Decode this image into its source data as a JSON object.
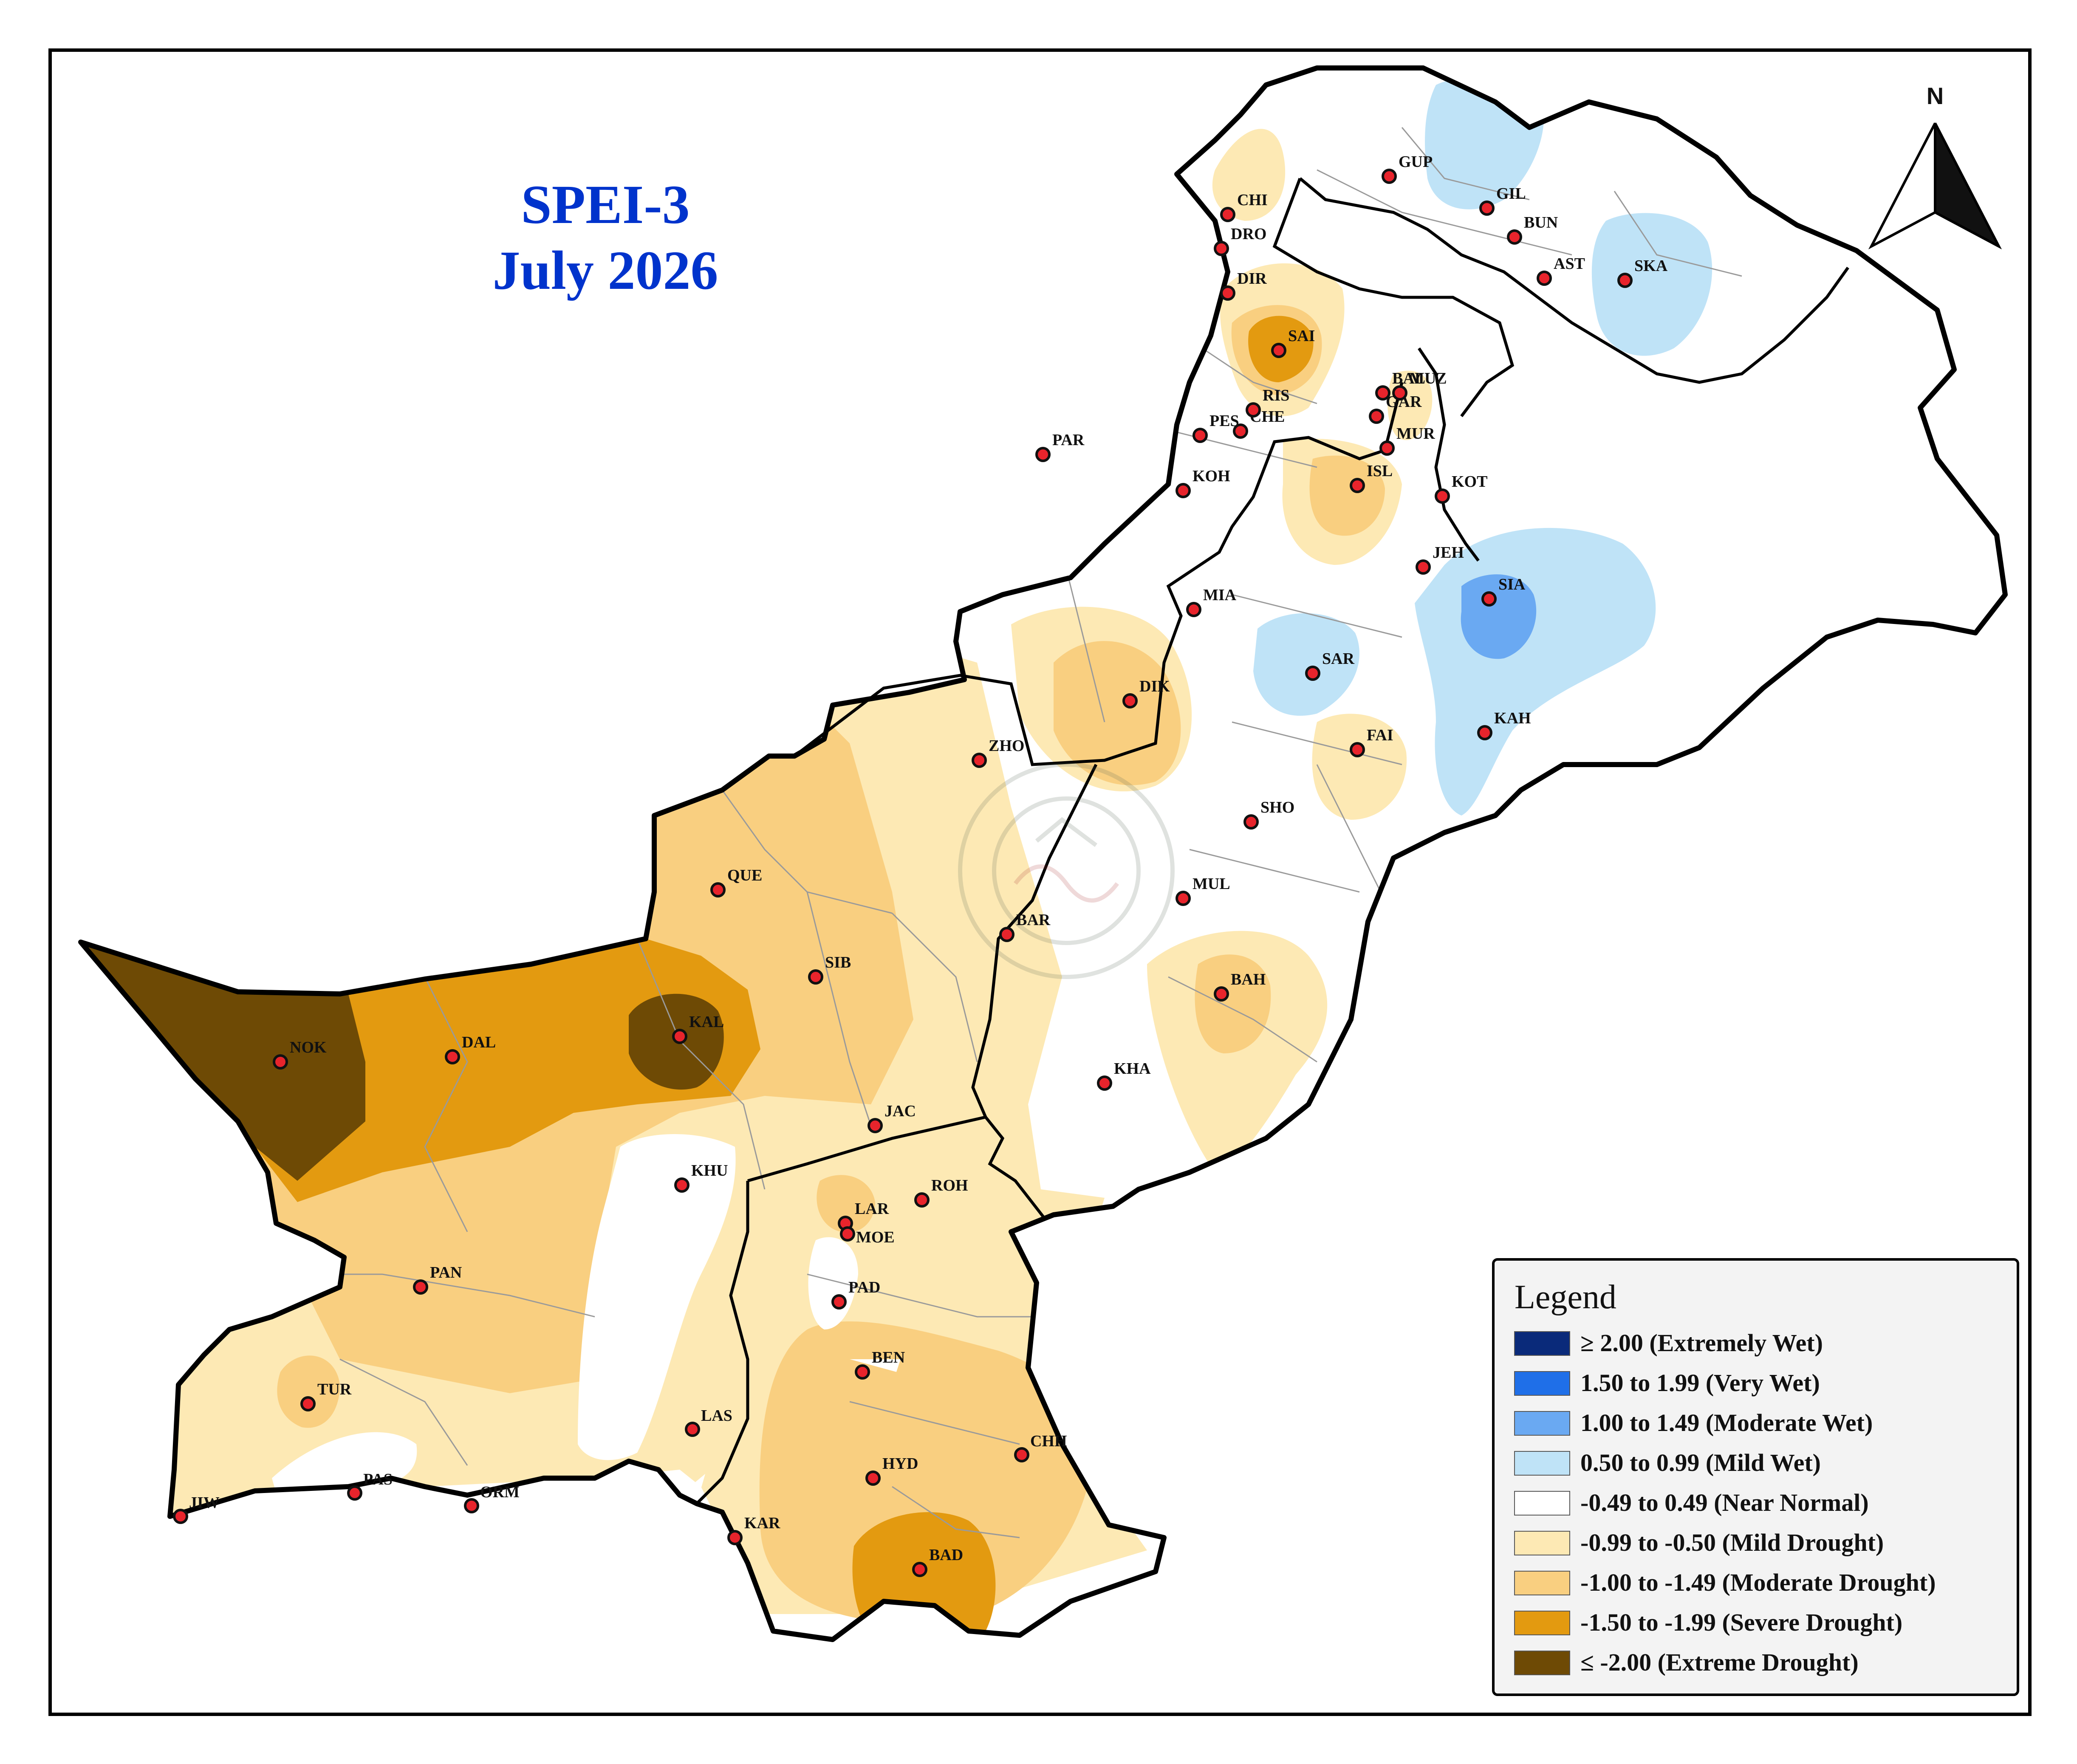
{
  "title": {
    "line1": "SPEI-3",
    "line2": "July 2026"
  },
  "north_label": "N",
  "legend": {
    "title": "Legend",
    "items": [
      {
        "label": "≥ 2.00 (Extremely Wet)",
        "color": "#0a2a7a"
      },
      {
        "label": "1.50 to 1.99 (Very Wet)",
        "color": "#1f6fe8"
      },
      {
        "label": "1.00 to 1.49 (Moderate Wet)",
        "color": "#6aa9f2"
      },
      {
        "label": "0.50 to 0.99 (Mild Wet)",
        "color": "#bfe3f7"
      },
      {
        "label": "-0.49 to 0.49 (Near Normal)",
        "color": "#ffffff"
      },
      {
        "label": "-0.99 to -0.50 (Mild Drought)",
        "color": "#fde9b4"
      },
      {
        "label": "-1.00 to -1.49 (Moderate Drought)",
        "color": "#f9cf80"
      },
      {
        "label": "-1.50 to -1.99 (Severe Drought)",
        "color": "#e39a10"
      },
      {
        "label": "≤ -2.00 (Extreme Drought)",
        "color": "#6e4a05"
      }
    ]
  },
  "stations": [
    "NOK",
    "DAL",
    "KAL",
    "QUE",
    "SIB",
    "ZHO",
    "DIK",
    "BAR",
    "JAC",
    "KHU",
    "LAR",
    "MOE",
    "PAD",
    "ROH",
    "BEN",
    "LAS",
    "HYD",
    "CHH",
    "KAR",
    "BAD",
    "PAN",
    "TUR",
    "JIW",
    "PAS",
    "ORM",
    "MIA",
    "SAR",
    "FAI",
    "SHO",
    "MUL",
    "BAH",
    "KHA",
    "SIA",
    "KAH",
    "JEH",
    "KOT",
    "ISL",
    "MUR",
    "GAR",
    "KOH",
    "PES",
    "CHE",
    "RIS",
    "SAI",
    "DIR",
    "DRO",
    "CHI",
    "GUP",
    "GIL",
    "BUN",
    "AST",
    "SKA",
    "PAR",
    "BAL",
    "MUZ"
  ]
}
